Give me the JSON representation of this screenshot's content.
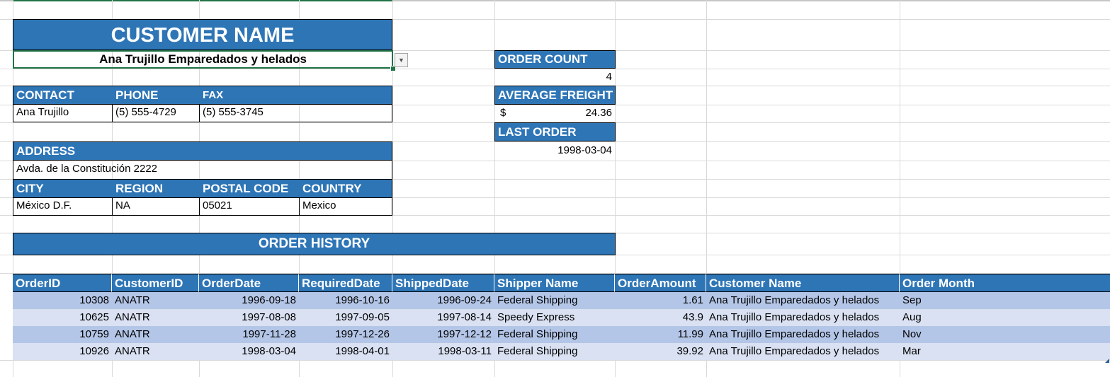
{
  "customer": {
    "title": "CUSTOMER NAME",
    "selected": "Ana Trujillo Emparedados y helados"
  },
  "contact": {
    "labels": {
      "contact": "CONTACT",
      "phone": "PHONE",
      "fax": "FAX"
    },
    "values": {
      "contact": "Ana Trujillo",
      "phone": "(5) 555-4729",
      "fax": "(5) 555-3745"
    }
  },
  "address": {
    "label": "ADDRESS",
    "value": "Avda. de la Constitución 2222",
    "labels": {
      "city": "CITY",
      "region": "REGION",
      "postal": "POSTAL CODE",
      "country": "COUNTRY"
    },
    "values": {
      "city": "México D.F.",
      "region": "NA",
      "postal": "05021",
      "country": "Mexico"
    }
  },
  "stats": {
    "order_count_label": "ORDER COUNT",
    "order_count": "4",
    "avg_freight_label": "AVERAGE FREIGHT",
    "avg_freight_currency": "$",
    "avg_freight": "24.36",
    "last_order_label": "LAST ORDER",
    "last_order": "1998-03-04"
  },
  "order_history": {
    "title": "ORDER HISTORY",
    "columns": [
      "OrderID",
      "CustomerID",
      "OrderDate",
      "RequiredDate",
      "ShippedDate",
      "Shipper Name",
      "OrderAmount",
      "Customer Name",
      "Order Month"
    ],
    "rows": [
      [
        "10308",
        "ANATR",
        "1996-09-18",
        "1996-10-16",
        "1996-09-24",
        "Federal Shipping",
        "1.61",
        "Ana Trujillo Emparedados y helados",
        "Sep"
      ],
      [
        "10625",
        "ANATR",
        "1997-08-08",
        "1997-09-05",
        "1997-08-14",
        "Speedy Express",
        "43.9",
        "Ana Trujillo Emparedados y helados",
        "Aug"
      ],
      [
        "10759",
        "ANATR",
        "1997-11-28",
        "1997-12-26",
        "1997-12-12",
        "Federal Shipping",
        "11.99",
        "Ana Trujillo Emparedados y helados",
        "Nov"
      ],
      [
        "10926",
        "ANATR",
        "1998-03-04",
        "1998-04-01",
        "1998-03-11",
        "Federal Shipping",
        "39.92",
        "Ana Trujillo Emparedados y helados",
        "Mar"
      ]
    ]
  },
  "colors": {
    "header_blue": "#2e75b6",
    "row_dark": "#b4c6e7",
    "row_light": "#d9e1f2",
    "selection_green": "#217346"
  },
  "icons": {
    "dropdown": "chevron-down-icon"
  }
}
